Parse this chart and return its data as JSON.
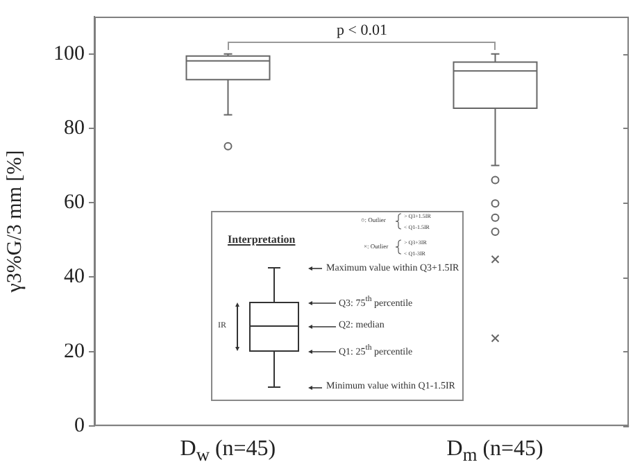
{
  "chart_data": {
    "type": "box",
    "categories": [
      "D$_{w}$ (n=45)",
      "D$_{m}$ (n=45)"
    ],
    "ylabel": "γ3%G/3 mm [%]",
    "ylim": [
      0,
      110
    ],
    "yticks": [
      0,
      20,
      40,
      60,
      80,
      100
    ],
    "series": [
      {
        "type": "box",
        "color": "#666666",
        "boxes": [
          {
            "low": 83.6,
            "q1": 93.1,
            "median": 98.1,
            "q3": 99.4,
            "high": 100,
            "outliers": [
              75.2
            ]
          },
          {
            "low": 70,
            "q1": 85.4,
            "median": 95.4,
            "q3": 97.8,
            "high": 100,
            "outliers": [
              66.1,
              59.8,
              56,
              52.2
            ]
          }
        ]
      },
      {
        "type": "scatter",
        "marker": "cross",
        "color": "#666666",
        "x": [
          "D$_{m}$ (n=45)",
          "D$_{m}$ (n=45)"
        ],
        "values": [
          44.8,
          23.6
        ]
      }
    ],
    "annotations": [
      "p < 0.01",
      "Interpretation",
      "○: Outlier",
      "> Q3+1.5IR",
      "< Q1-1.5IR",
      "×: Outlier",
      "> Q3+3IR",
      "< Q1-3IR",
      "Maximum value within Q3+1.5IR",
      "Q3: 75$^{th}$ percentile",
      "Q2: median",
      "Q1: 25$^{th}$ percentile",
      "Minimum value within Q1-1.5IR",
      "IR"
    ]
  }
}
